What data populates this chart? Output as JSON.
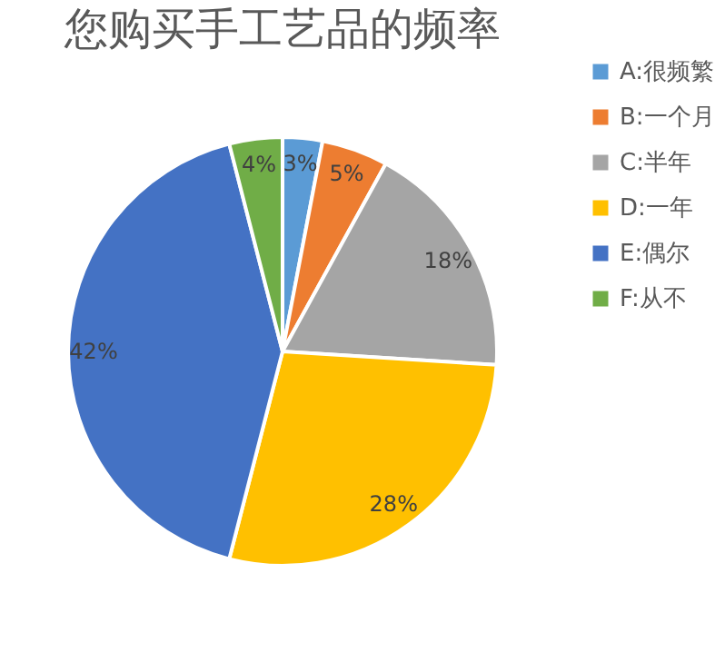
{
  "chart_data": {
    "type": "pie",
    "title": "您购买手工艺品的频率",
    "categories": [
      "A:很频繁",
      "B:一个月",
      "C:半年",
      "D:一年",
      "E:偶尔",
      "F:从不"
    ],
    "values": [
      3,
      5,
      18,
      28,
      42,
      4
    ],
    "value_labels": [
      "3%",
      "5%",
      "18%",
      "28%",
      "42%",
      "4%"
    ],
    "colors": [
      "#5b9bd5",
      "#ed7d31",
      "#a5a5a5",
      "#ffc000",
      "#4472c4",
      "#70ad47"
    ],
    "legend": "right"
  }
}
